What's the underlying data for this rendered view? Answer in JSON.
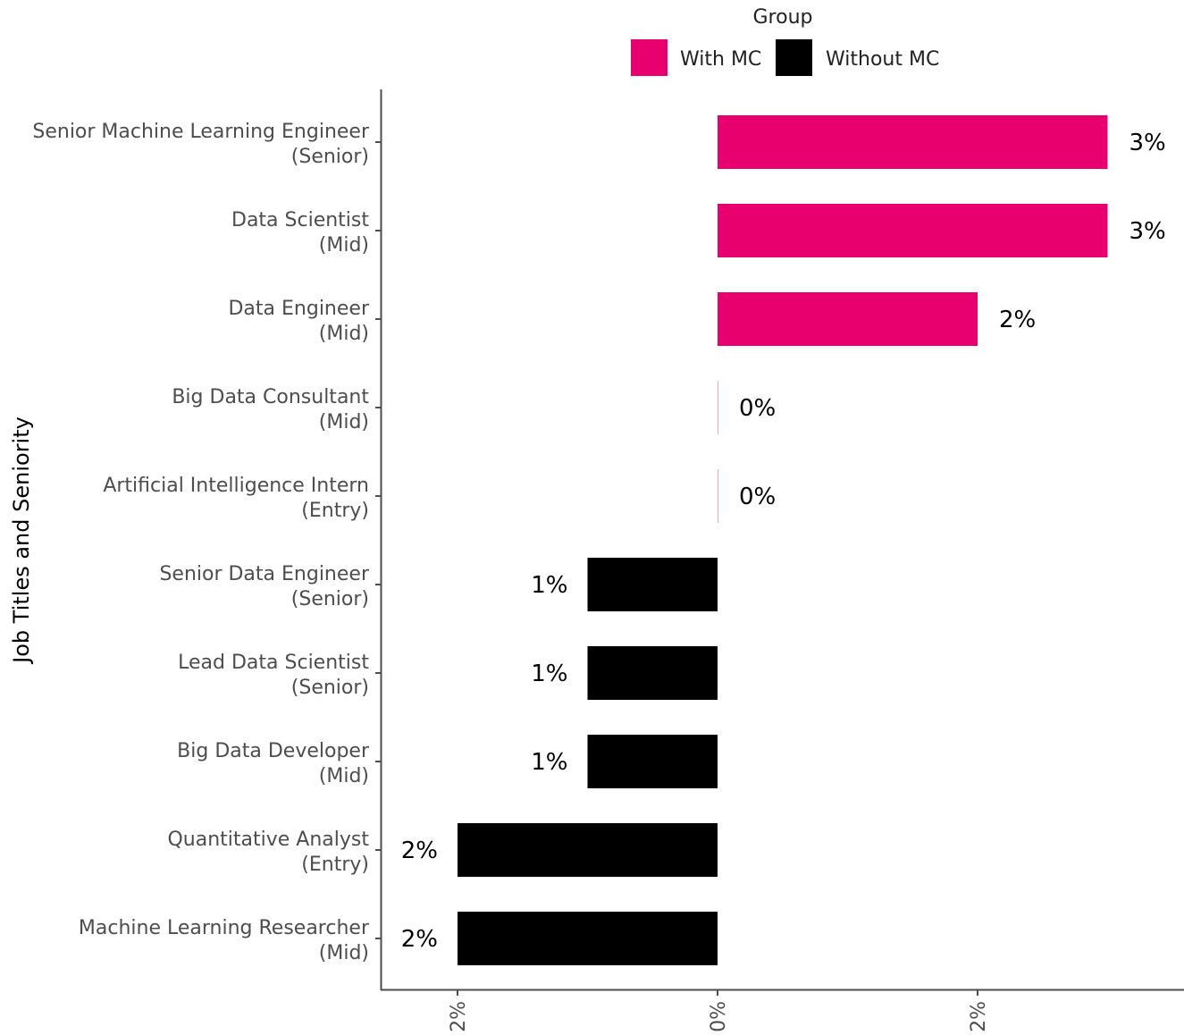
{
  "chart_data": {
    "type": "bar",
    "orientation": "horizontal",
    "ylabel": "Job Titles and Seniority",
    "xlabel": "",
    "xlim": [
      -3,
      3.6
    ],
    "x_ticks": [
      -2,
      0,
      2
    ],
    "x_tick_labels": [
      "2%",
      "0%",
      "2%"
    ],
    "legend": {
      "title": "Group",
      "placement": "top",
      "entries": [
        {
          "name": "With MC",
          "color": "#e8006e"
        },
        {
          "name": "Without MC",
          "color": "#000000"
        }
      ]
    },
    "grid": false,
    "categories": [
      {
        "title": "Senior Machine Learning Engineer",
        "level": "(Senior)"
      },
      {
        "title": "Data Scientist",
        "level": "(Mid)"
      },
      {
        "title": "Data Engineer",
        "level": "(Mid)"
      },
      {
        "title": "Big Data Consultant",
        "level": "(Mid)"
      },
      {
        "title": "Artificial Intelligence Intern",
        "level": "(Entry)"
      },
      {
        "title": "Senior Data Engineer",
        "level": "(Senior)"
      },
      {
        "title": "Lead Data Scientist",
        "level": "(Senior)"
      },
      {
        "title": "Big Data Developer",
        "level": "(Mid)"
      },
      {
        "title": "Quantitative Analyst",
        "level": "(Entry)"
      },
      {
        "title": "Machine Learning Researcher",
        "level": "(Mid)"
      }
    ],
    "values": [
      3.0,
      3.0,
      2.0,
      0.0,
      0.0,
      -1.0,
      -1.0,
      -1.0,
      -2.0,
      -2.0
    ],
    "groups": [
      "With MC",
      "With MC",
      "With MC",
      "With MC",
      "With MC",
      "Without MC",
      "Without MC",
      "Without MC",
      "Without MC",
      "Without MC"
    ],
    "data_labels": [
      "3%",
      "3%",
      "2%",
      "0%",
      "0%",
      "1%",
      "1%",
      "1%",
      "2%",
      "2%"
    ]
  }
}
